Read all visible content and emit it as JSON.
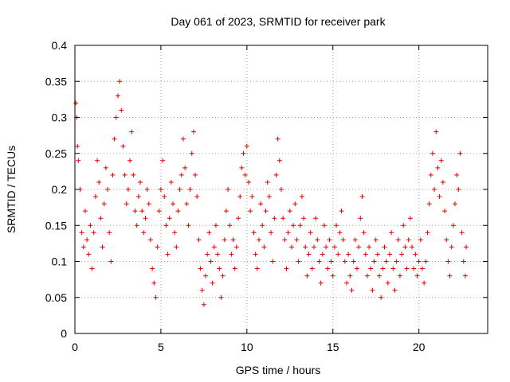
{
  "chart_data": {
    "type": "scatter",
    "title": "Day 061 of 2023, SRMTID for receiver park",
    "xlabel": "GPS time / hours",
    "ylabel": "SRMTID / TECUs",
    "xlim": [
      0,
      24
    ],
    "ylim": [
      0,
      0.4
    ],
    "xticks": [
      0,
      5,
      10,
      15,
      20
    ],
    "xtick_labels": [
      "0",
      "5",
      "10",
      "15",
      "20"
    ],
    "yticks": [
      0,
      0.05,
      0.1,
      0.15,
      0.2,
      0.25,
      0.3,
      0.35,
      0.4
    ],
    "ytick_labels": [
      "0",
      "0.05",
      "0.1",
      "0.15",
      "0.2",
      "0.25",
      "0.3",
      "0.35",
      "0.4"
    ],
    "grid": true,
    "marker": "plus",
    "color": "#e00000",
    "series": [
      {
        "name": "SRMTID",
        "points": [
          [
            0.05,
            0.32
          ],
          [
            0.1,
            0.3
          ],
          [
            0.15,
            0.26
          ],
          [
            0.2,
            0.24
          ],
          [
            0.3,
            0.2
          ],
          [
            0.4,
            0.14
          ],
          [
            0.5,
            0.12
          ],
          [
            0.6,
            0.17
          ],
          [
            0.7,
            0.13
          ],
          [
            0.8,
            0.11
          ],
          [
            0.9,
            0.15
          ],
          [
            1.0,
            0.09
          ],
          [
            1.1,
            0.14
          ],
          [
            1.2,
            0.19
          ],
          [
            1.3,
            0.24
          ],
          [
            1.4,
            0.21
          ],
          [
            1.5,
            0.16
          ],
          [
            1.6,
            0.12
          ],
          [
            1.7,
            0.18
          ],
          [
            1.8,
            0.23
          ],
          [
            1.9,
            0.2
          ],
          [
            2.0,
            0.14
          ],
          [
            2.1,
            0.1
          ],
          [
            2.2,
            0.22
          ],
          [
            2.3,
            0.27
          ],
          [
            2.4,
            0.3
          ],
          [
            2.5,
            0.33
          ],
          [
            2.6,
            0.35
          ],
          [
            2.7,
            0.31
          ],
          [
            2.8,
            0.26
          ],
          [
            2.9,
            0.22
          ],
          [
            3.0,
            0.18
          ],
          [
            3.1,
            0.2
          ],
          [
            3.2,
            0.24
          ],
          [
            3.3,
            0.28
          ],
          [
            3.4,
            0.22
          ],
          [
            3.5,
            0.17
          ],
          [
            3.6,
            0.15
          ],
          [
            3.7,
            0.19
          ],
          [
            3.8,
            0.21
          ],
          [
            3.9,
            0.17
          ],
          [
            4.0,
            0.14
          ],
          [
            4.1,
            0.16
          ],
          [
            4.2,
            0.2
          ],
          [
            4.3,
            0.18
          ],
          [
            4.4,
            0.13
          ],
          [
            4.5,
            0.09
          ],
          [
            4.6,
            0.07
          ],
          [
            4.7,
            0.05
          ],
          [
            4.8,
            0.12
          ],
          [
            4.9,
            0.17
          ],
          [
            5.0,
            0.2
          ],
          [
            5.1,
            0.24
          ],
          [
            5.2,
            0.19
          ],
          [
            5.3,
            0.15
          ],
          [
            5.4,
            0.11
          ],
          [
            5.5,
            0.16
          ],
          [
            5.6,
            0.21
          ],
          [
            5.7,
            0.18
          ],
          [
            5.8,
            0.14
          ],
          [
            5.9,
            0.12
          ],
          [
            6.0,
            0.17
          ],
          [
            6.1,
            0.2
          ],
          [
            6.2,
            0.22
          ],
          [
            6.3,
            0.27
          ],
          [
            6.4,
            0.23
          ],
          [
            6.5,
            0.18
          ],
          [
            6.6,
            0.15
          ],
          [
            6.7,
            0.2
          ],
          [
            6.8,
            0.25
          ],
          [
            6.9,
            0.28
          ],
          [
            7.0,
            0.22
          ],
          [
            7.1,
            0.19
          ],
          [
            7.2,
            0.13
          ],
          [
            7.3,
            0.09
          ],
          [
            7.4,
            0.06
          ],
          [
            7.5,
            0.04
          ],
          [
            7.6,
            0.08
          ],
          [
            7.7,
            0.11
          ],
          [
            7.8,
            0.14
          ],
          [
            7.9,
            0.1
          ],
          [
            8.0,
            0.07
          ],
          [
            8.1,
            0.12
          ],
          [
            8.2,
            0.15
          ],
          [
            8.3,
            0.11
          ],
          [
            8.4,
            0.09
          ],
          [
            8.5,
            0.05
          ],
          [
            8.6,
            0.08
          ],
          [
            8.7,
            0.13
          ],
          [
            8.8,
            0.17
          ],
          [
            8.9,
            0.2
          ],
          [
            9.0,
            0.15
          ],
          [
            9.1,
            0.11
          ],
          [
            9.2,
            0.13
          ],
          [
            9.3,
            0.09
          ],
          [
            9.4,
            0.12
          ],
          [
            9.5,
            0.16
          ],
          [
            9.6,
            0.19
          ],
          [
            9.7,
            0.23
          ],
          [
            9.8,
            0.25
          ],
          [
            9.9,
            0.22
          ],
          [
            10.0,
            0.26
          ],
          [
            10.1,
            0.21
          ],
          [
            10.2,
            0.17
          ],
          [
            10.3,
            0.19
          ],
          [
            10.4,
            0.14
          ],
          [
            10.5,
            0.11
          ],
          [
            10.6,
            0.09
          ],
          [
            10.7,
            0.13
          ],
          [
            10.8,
            0.18
          ],
          [
            10.9,
            0.15
          ],
          [
            11.0,
            0.12
          ],
          [
            11.1,
            0.17
          ],
          [
            11.2,
            0.21
          ],
          [
            11.3,
            0.19
          ],
          [
            11.4,
            0.14
          ],
          [
            11.5,
            0.1
          ],
          [
            11.6,
            0.16
          ],
          [
            11.7,
            0.22
          ],
          [
            11.8,
            0.27
          ],
          [
            11.9,
            0.24
          ],
          [
            12.0,
            0.2
          ],
          [
            12.1,
            0.16
          ],
          [
            12.2,
            0.13
          ],
          [
            12.3,
            0.09
          ],
          [
            12.4,
            0.14
          ],
          [
            12.5,
            0.17
          ],
          [
            12.6,
            0.12
          ],
          [
            12.7,
            0.15
          ],
          [
            12.8,
            0.18
          ],
          [
            12.9,
            0.13
          ],
          [
            13.0,
            0.1
          ],
          [
            13.1,
            0.15
          ],
          [
            13.2,
            0.19
          ],
          [
            13.3,
            0.16
          ],
          [
            13.4,
            0.12
          ],
          [
            13.5,
            0.08
          ],
          [
            13.6,
            0.11
          ],
          [
            13.7,
            0.14
          ],
          [
            13.8,
            0.09
          ],
          [
            13.9,
            0.12
          ],
          [
            14.0,
            0.16
          ],
          [
            14.1,
            0.13
          ],
          [
            14.2,
            0.1
          ],
          [
            14.3,
            0.07
          ],
          [
            14.4,
            0.11
          ],
          [
            14.5,
            0.15
          ],
          [
            14.6,
            0.12
          ],
          [
            14.7,
            0.09
          ],
          [
            14.8,
            0.13
          ],
          [
            14.9,
            0.1
          ],
          [
            15.0,
            0.08
          ],
          [
            15.1,
            0.12
          ],
          [
            15.2,
            0.15
          ],
          [
            15.3,
            0.11
          ],
          [
            15.4,
            0.14
          ],
          [
            15.5,
            0.17
          ],
          [
            15.6,
            0.13
          ],
          [
            15.7,
            0.1
          ],
          [
            15.8,
            0.07
          ],
          [
            15.9,
            0.11
          ],
          [
            16.0,
            0.08
          ],
          [
            16.1,
            0.06
          ],
          [
            16.2,
            0.1
          ],
          [
            16.3,
            0.13
          ],
          [
            16.4,
            0.09
          ],
          [
            16.5,
            0.12
          ],
          [
            16.6,
            0.16
          ],
          [
            16.7,
            0.19
          ],
          [
            16.8,
            0.14
          ],
          [
            16.9,
            0.11
          ],
          [
            17.0,
            0.08
          ],
          [
            17.1,
            0.12
          ],
          [
            17.2,
            0.09
          ],
          [
            17.3,
            0.06
          ],
          [
            17.4,
            0.1
          ],
          [
            17.5,
            0.13
          ],
          [
            17.6,
            0.11
          ],
          [
            17.7,
            0.08
          ],
          [
            17.8,
            0.05
          ],
          [
            17.9,
            0.09
          ],
          [
            18.0,
            0.12
          ],
          [
            18.1,
            0.1
          ],
          [
            18.2,
            0.07
          ],
          [
            18.3,
            0.11
          ],
          [
            18.4,
            0.14
          ],
          [
            18.5,
            0.09
          ],
          [
            18.6,
            0.06
          ],
          [
            18.7,
            0.1
          ],
          [
            18.8,
            0.13
          ],
          [
            18.9,
            0.08
          ],
          [
            19.0,
            0.11
          ],
          [
            19.1,
            0.15
          ],
          [
            19.2,
            0.12
          ],
          [
            19.3,
            0.09
          ],
          [
            19.4,
            0.13
          ],
          [
            19.5,
            0.16
          ],
          [
            19.6,
            0.12
          ],
          [
            19.7,
            0.09
          ],
          [
            19.8,
            0.11
          ],
          [
            19.9,
            0.08
          ],
          [
            20.0,
            0.1
          ],
          [
            20.1,
            0.13
          ],
          [
            20.2,
            0.09
          ],
          [
            20.3,
            0.07
          ],
          [
            20.4,
            0.1
          ],
          [
            20.5,
            0.14
          ],
          [
            20.6,
            0.18
          ],
          [
            20.7,
            0.22
          ],
          [
            20.8,
            0.25
          ],
          [
            20.9,
            0.2
          ],
          [
            21.0,
            0.28
          ],
          [
            21.1,
            0.23
          ],
          [
            21.2,
            0.19
          ],
          [
            21.3,
            0.24
          ],
          [
            21.4,
            0.21
          ],
          [
            21.5,
            0.17
          ],
          [
            21.6,
            0.13
          ],
          [
            21.7,
            0.1
          ],
          [
            21.8,
            0.08
          ],
          [
            21.9,
            0.12
          ],
          [
            22.0,
            0.15
          ],
          [
            22.1,
            0.18
          ],
          [
            22.2,
            0.22
          ],
          [
            22.3,
            0.2
          ],
          [
            22.4,
            0.25
          ],
          [
            22.5,
            0.14
          ],
          [
            22.6,
            0.1
          ],
          [
            22.7,
            0.08
          ],
          [
            22.75,
            0.12
          ]
        ]
      }
    ]
  }
}
